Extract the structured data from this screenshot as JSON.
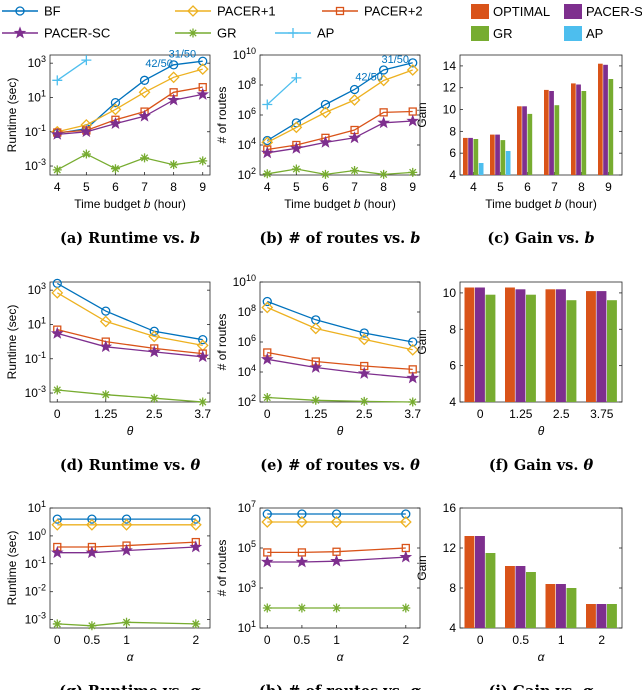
{
  "legend_lines": [
    {
      "name": "BF",
      "color": "#0072BD",
      "marker": "circle"
    },
    {
      "name": "PACER+1",
      "color": "#EDB120",
      "marker": "diamond"
    },
    {
      "name": "PACER+2",
      "color": "#D95319",
      "marker": "square"
    },
    {
      "name": "PACER-SC",
      "color": "#7E2F8E",
      "marker": "star"
    },
    {
      "name": "GR",
      "color": "#77AC30",
      "marker": "asterisk"
    },
    {
      "name": "AP",
      "color": "#4DBEEE",
      "marker": "plus"
    }
  ],
  "legend_bars": [
    {
      "name": "OPTIMAL",
      "color": "#D95319"
    },
    {
      "name": "PACER-SC",
      "color": "#7E2F8E"
    },
    {
      "name": "GR",
      "color": "#77AC30"
    },
    {
      "name": "AP",
      "color": "#4DBEEE"
    }
  ],
  "chart_data": [
    {
      "id": "a",
      "type": "line",
      "caption": "(a) Runtime vs. b",
      "xlabel": "Time budget b (hour)",
      "ylabel": "Runtime (sec)",
      "yscale": "log",
      "ylim": [
        0.0003,
        3000
      ],
      "yticks": [
        [
          "10^{-3}",
          0.001
        ],
        [
          "10^{-1}",
          0.1
        ],
        [
          "10^{1}",
          10
        ],
        [
          "10^{3}",
          1000
        ]
      ],
      "xlim": [
        4,
        9
      ],
      "xticks": [
        [
          "4",
          4
        ],
        [
          "5",
          5
        ],
        [
          "6",
          6
        ],
        [
          "7",
          7
        ],
        [
          "8",
          8
        ],
        [
          "9",
          9
        ]
      ],
      "series": [
        {
          "name": "BF",
          "x": [
            4,
            5,
            6,
            7,
            8,
            9
          ],
          "y": [
            0.08,
            0.15,
            5,
            100,
            800,
            1300
          ]
        },
        {
          "name": "PACER+1",
          "x": [
            4,
            5,
            6,
            7,
            8,
            9
          ],
          "y": [
            0.1,
            0.25,
            2,
            20,
            150,
            450
          ]
        },
        {
          "name": "PACER+2",
          "x": [
            4,
            5,
            6,
            7,
            8,
            9
          ],
          "y": [
            0.09,
            0.12,
            0.5,
            1.5,
            20,
            40
          ]
        },
        {
          "name": "PACER-SC",
          "x": [
            4,
            5,
            6,
            7,
            8,
            9
          ],
          "y": [
            0.07,
            0.1,
            0.3,
            0.8,
            7,
            15
          ]
        },
        {
          "name": "GR",
          "x": [
            4,
            5,
            6,
            7,
            8,
            9
          ],
          "y": [
            0.0006,
            0.005,
            0.0007,
            0.003,
            0.0012,
            0.002
          ]
        },
        {
          "name": "AP",
          "x": [
            4,
            5
          ],
          "y": [
            100,
            1500
          ]
        }
      ],
      "annotations": [
        {
          "text": "42/50",
          "x": 7.5,
          "y": 600
        },
        {
          "text": "31/50",
          "x": 8.3,
          "y": 2200
        }
      ]
    },
    {
      "id": "b",
      "type": "line",
      "caption": "(b) # of routes vs. b",
      "xlabel": "Time budget b (hour)",
      "ylabel": "# of routes",
      "yscale": "log",
      "ylim": [
        100,
        10000000000
      ],
      "yticks": [
        [
          "10^{2}",
          100
        ],
        [
          "10^{4}",
          10000
        ],
        [
          "10^{6}",
          1000000
        ],
        [
          "10^{8}",
          100000000
        ],
        [
          "10^{10}",
          10000000000
        ]
      ],
      "xlim": [
        4,
        9
      ],
      "xticks": [
        [
          "4",
          4
        ],
        [
          "5",
          5
        ],
        [
          "6",
          6
        ],
        [
          "7",
          7
        ],
        [
          "8",
          8
        ],
        [
          "9",
          9
        ]
      ],
      "series": [
        {
          "name": "BF",
          "x": [
            4,
            5,
            6,
            7,
            8,
            9
          ],
          "y": [
            20000,
            300000,
            5000000,
            50000000,
            1000000000,
            3000000000
          ]
        },
        {
          "name": "PACER+1",
          "x": [
            4,
            5,
            6,
            7,
            8,
            9
          ],
          "y": [
            15000,
            150000,
            1500000,
            10000000,
            200000000,
            1000000000
          ]
        },
        {
          "name": "PACER+2",
          "x": [
            4,
            5,
            6,
            7,
            8,
            9
          ],
          "y": [
            5000,
            10000,
            30000,
            100000,
            1500000,
            1700000
          ]
        },
        {
          "name": "PACER-SC",
          "x": [
            4,
            5,
            6,
            7,
            8,
            9
          ],
          "y": [
            3000,
            6000,
            15000,
            30000,
            300000,
            400000
          ]
        },
        {
          "name": "GR",
          "x": [
            4,
            5,
            6,
            7,
            8,
            9
          ],
          "y": [
            120,
            250,
            110,
            200,
            110,
            150
          ]
        },
        {
          "name": "AP",
          "x": [
            4,
            5
          ],
          "y": [
            5000000,
            300000000
          ]
        }
      ],
      "annotations": [
        {
          "text": "42/50",
          "x": 7.5,
          "y": 200000000
        },
        {
          "text": "31/50",
          "x": 8.4,
          "y": 3000000000
        }
      ]
    },
    {
      "id": "c",
      "type": "bar",
      "caption": "(c) Gain vs. b",
      "xlabel": "Time budget b (hour)",
      "ylabel": "Gain",
      "ylim": [
        4,
        15
      ],
      "yticks": [
        4,
        6,
        8,
        10,
        12,
        14
      ],
      "categories": [
        "4",
        "5",
        "6",
        "7",
        "8",
        "9"
      ],
      "series": [
        {
          "name": "OPTIMAL",
          "values": [
            7.4,
            7.7,
            10.3,
            11.8,
            12.4,
            14.2
          ]
        },
        {
          "name": "PACER-SC",
          "values": [
            7.4,
            7.7,
            10.3,
            11.7,
            12.3,
            14.1
          ]
        },
        {
          "name": "GR",
          "values": [
            7.3,
            7.2,
            9.6,
            10.4,
            11.7,
            12.8
          ]
        },
        {
          "name": "AP",
          "values": [
            5.1,
            6.2,
            null,
            null,
            null,
            null
          ]
        }
      ]
    },
    {
      "id": "d",
      "type": "line",
      "caption": "(d) Runtime vs. θ",
      "xlabel": "θ",
      "ylabel": "Runtime (sec)",
      "yscale": "log",
      "ylim": [
        0.0003,
        3000
      ],
      "yticks": [
        [
          "10^{-3}",
          0.001
        ],
        [
          "10^{-1}",
          0.1
        ],
        [
          "10^{1}",
          10
        ],
        [
          "10^{3}",
          1000
        ]
      ],
      "xlim": [
        0,
        3.75
      ],
      "xticks": [
        [
          "0",
          0
        ],
        [
          "1.25",
          1.25
        ],
        [
          "2.5",
          2.5
        ],
        [
          "3.7",
          3.75
        ]
      ],
      "series": [
        {
          "name": "BF",
          "x": [
            0,
            1.25,
            2.5,
            3.75
          ],
          "y": [
            2500,
            60,
            4,
            1.3
          ]
        },
        {
          "name": "PACER+1",
          "x": [
            0,
            1.25,
            2.5,
            3.75
          ],
          "y": [
            700,
            15,
            2,
            0.6
          ]
        },
        {
          "name": "PACER+2",
          "x": [
            0,
            1.25,
            2.5,
            3.75
          ],
          "y": [
            5,
            1,
            0.4,
            0.2
          ]
        },
        {
          "name": "PACER-SC",
          "x": [
            0,
            1.25,
            2.5,
            3.75
          ],
          "y": [
            3,
            0.5,
            0.25,
            0.13
          ]
        },
        {
          "name": "GR",
          "x": [
            0,
            1.25,
            2.5,
            3.75
          ],
          "y": [
            0.0015,
            0.0008,
            0.0005,
            0.0003
          ]
        }
      ]
    },
    {
      "id": "e",
      "type": "line",
      "caption": "(e) # of routes vs. θ",
      "xlabel": "θ",
      "ylabel": "# of routes",
      "yscale": "log",
      "ylim": [
        100,
        10000000000
      ],
      "yticks": [
        [
          "10^{2}",
          100
        ],
        [
          "10^{4}",
          10000
        ],
        [
          "10^{6}",
          1000000
        ],
        [
          "10^{8}",
          100000000
        ],
        [
          "10^{10}",
          10000000000
        ]
      ],
      "xlim": [
        0,
        3.75
      ],
      "xticks": [
        [
          "0",
          0
        ],
        [
          "1.25",
          1.25
        ],
        [
          "2.5",
          2.5
        ],
        [
          "3.7",
          3.75
        ]
      ],
      "series": [
        {
          "name": "BF",
          "x": [
            0,
            1.25,
            2.5,
            3.75
          ],
          "y": [
            500000000,
            30000000,
            4000000,
            1000000
          ]
        },
        {
          "name": "PACER+1",
          "x": [
            0,
            1.25,
            2.5,
            3.75
          ],
          "y": [
            200000000,
            8000000,
            1500000,
            300000
          ]
        },
        {
          "name": "PACER+2",
          "x": [
            0,
            1.25,
            2.5,
            3.75
          ],
          "y": [
            200000,
            50000,
            25000,
            15000
          ]
        },
        {
          "name": "PACER-SC",
          "x": [
            0,
            1.25,
            2.5,
            3.75
          ],
          "y": [
            70000,
            20000,
            8000,
            4000
          ]
        },
        {
          "name": "GR",
          "x": [
            0,
            1.25,
            2.5,
            3.75
          ],
          "y": [
            200,
            130,
            110,
            100
          ]
        }
      ]
    },
    {
      "id": "f",
      "type": "bar",
      "caption": "(f) Gain vs. θ",
      "xlabel": "θ",
      "ylabel": "Gain",
      "ylim": [
        4,
        10.6
      ],
      "yticks": [
        4,
        6,
        8,
        10
      ],
      "categories": [
        "0",
        "1.25",
        "2.5",
        "3.75"
      ],
      "series": [
        {
          "name": "OPTIMAL",
          "values": [
            10.3,
            10.3,
            10.2,
            10.1
          ]
        },
        {
          "name": "PACER-SC",
          "values": [
            10.3,
            10.2,
            10.2,
            10.1
          ]
        },
        {
          "name": "GR",
          "values": [
            9.9,
            9.9,
            9.6,
            9.6
          ]
        }
      ]
    },
    {
      "id": "g",
      "type": "line",
      "caption": "(g) Runtime vs. α",
      "xlabel": "α",
      "ylabel": "Runtime (sec)",
      "yscale": "log",
      "ylim": [
        0.0005,
        10
      ],
      "yticks": [
        [
          "10^{-3}",
          0.001
        ],
        [
          "10^{-2}",
          0.01
        ],
        [
          "10^{-1}",
          0.1
        ],
        [
          "10^{0}",
          1
        ],
        [
          "10^{1}",
          10
        ]
      ],
      "xlim": [
        0,
        2.1
      ],
      "xticks": [
        [
          "0",
          0
        ],
        [
          "0.5",
          0.5
        ],
        [
          "1",
          1
        ],
        [
          "2",
          2
        ]
      ],
      "series": [
        {
          "name": "BF",
          "x": [
            0,
            0.5,
            1,
            2
          ],
          "y": [
            4,
            4,
            4,
            4
          ]
        },
        {
          "name": "PACER+1",
          "x": [
            0,
            0.5,
            1,
            2
          ],
          "y": [
            2.5,
            2.5,
            2.5,
            2.5
          ]
        },
        {
          "name": "PACER+2",
          "x": [
            0,
            0.5,
            1,
            2
          ],
          "y": [
            0.4,
            0.4,
            0.45,
            0.6
          ]
        },
        {
          "name": "PACER-SC",
          "x": [
            0,
            0.5,
            1,
            2
          ],
          "y": [
            0.25,
            0.25,
            0.3,
            0.4
          ]
        },
        {
          "name": "GR",
          "x": [
            0,
            0.5,
            1,
            2
          ],
          "y": [
            0.0007,
            0.0006,
            0.0008,
            0.0007
          ]
        }
      ]
    },
    {
      "id": "h",
      "type": "line",
      "caption": "(h) # of routes vs. α",
      "xlabel": "α",
      "ylabel": "# of routes",
      "yscale": "log",
      "ylim": [
        10,
        10000000
      ],
      "yticks": [
        [
          "10^{1}",
          10
        ],
        [
          "10^{3}",
          1000
        ],
        [
          "10^{5}",
          100000
        ],
        [
          "10^{7}",
          10000000
        ]
      ],
      "xlim": [
        0,
        2.1
      ],
      "xticks": [
        [
          "0",
          0
        ],
        [
          "0.5",
          0.5
        ],
        [
          "1",
          1
        ],
        [
          "2",
          2
        ]
      ],
      "series": [
        {
          "name": "BF",
          "x": [
            0,
            0.5,
            1,
            2
          ],
          "y": [
            5000000,
            5000000,
            5000000,
            5000000
          ]
        },
        {
          "name": "PACER+1",
          "x": [
            0,
            0.5,
            1,
            2
          ],
          "y": [
            2000000,
            2000000,
            2000000,
            2000000
          ]
        },
        {
          "name": "PACER+2",
          "x": [
            0,
            0.5,
            1,
            2
          ],
          "y": [
            60000,
            60000,
            65000,
            100000
          ]
        },
        {
          "name": "PACER-SC",
          "x": [
            0,
            0.5,
            1,
            2
          ],
          "y": [
            20000,
            20000,
            22000,
            35000
          ]
        },
        {
          "name": "GR",
          "x": [
            0,
            0.5,
            1,
            2
          ],
          "y": [
            100,
            100,
            100,
            100
          ]
        }
      ]
    },
    {
      "id": "i",
      "type": "bar",
      "caption": "(i) Gain vs. α",
      "xlabel": "α",
      "ylabel": "Gain",
      "ylim": [
        4,
        16
      ],
      "yticks": [
        4,
        8,
        12,
        16
      ],
      "categories": [
        "0",
        "0.5",
        "1",
        "2"
      ],
      "series": [
        {
          "name": "OPTIMAL",
          "values": [
            13.2,
            10.2,
            8.4,
            6.4
          ]
        },
        {
          "name": "PACER-SC",
          "values": [
            13.2,
            10.2,
            8.4,
            6.4
          ]
        },
        {
          "name": "GR",
          "values": [
            11.5,
            9.6,
            8.0,
            6.4
          ]
        }
      ]
    }
  ]
}
